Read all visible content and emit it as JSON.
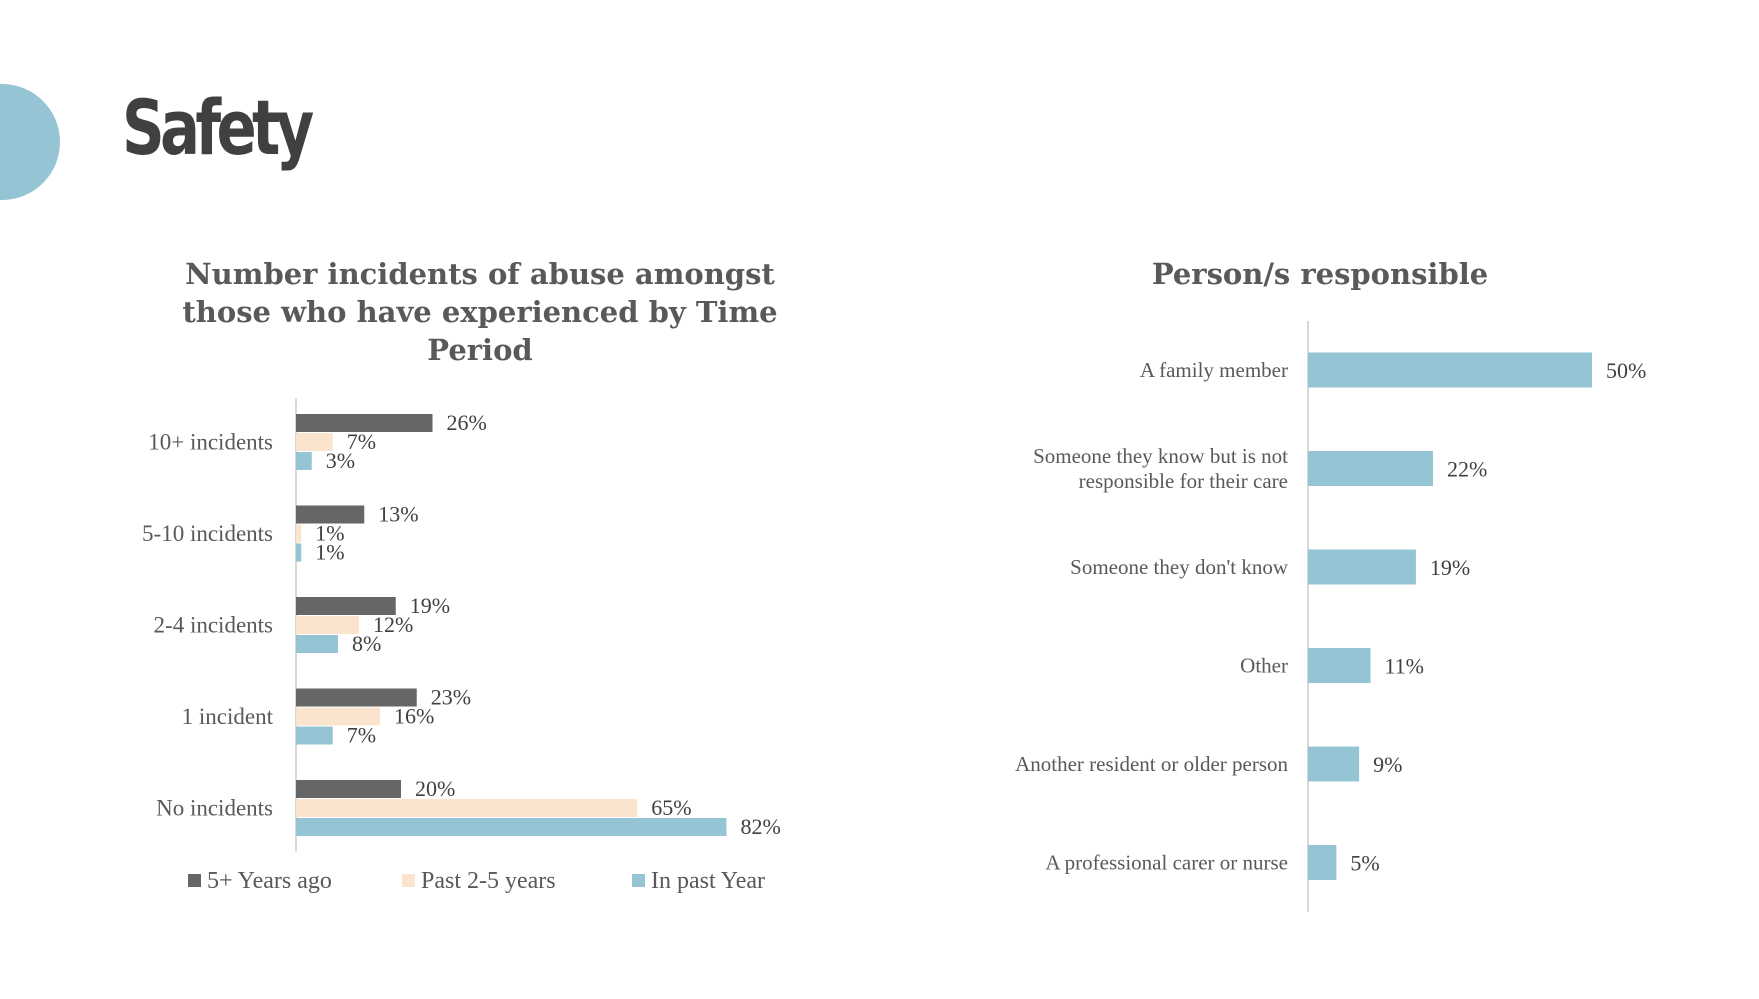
{
  "page": {
    "title": "Safety",
    "accent_color": "#95c4d5"
  },
  "chart_data": [
    {
      "type": "bar",
      "orientation": "horizontal",
      "title": "Number incidents of abuse amongst those who have experienced by Time Period",
      "categories": [
        "10+ incidents",
        "5-10 incidents",
        "2-4 incidents",
        "1 incident",
        "No incidents"
      ],
      "series": [
        {
          "name": "5+ Years ago",
          "color": "#666666",
          "values": [
            26,
            13,
            19,
            23,
            20
          ]
        },
        {
          "name": "Past 2-5 years",
          "color": "#fbe4cd",
          "values": [
            7,
            1,
            12,
            16,
            65
          ]
        },
        {
          "name": "In past Year",
          "color": "#95c4d5",
          "values": [
            3,
            1,
            8,
            7,
            82
          ]
        }
      ],
      "value_suffix": "%",
      "legend_position": "bottom",
      "grid": false
    },
    {
      "type": "bar",
      "orientation": "horizontal",
      "title": "Person/s responsible",
      "categories": [
        "A family member",
        "Someone they know but is not responsible for their care",
        "Someone they don't know",
        "Other",
        "Another resident or older person",
        "A professional carer or nurse"
      ],
      "values": [
        50,
        22,
        19,
        11,
        9,
        5
      ],
      "color": "#95c4d5",
      "value_suffix": "%",
      "grid": false
    }
  ]
}
